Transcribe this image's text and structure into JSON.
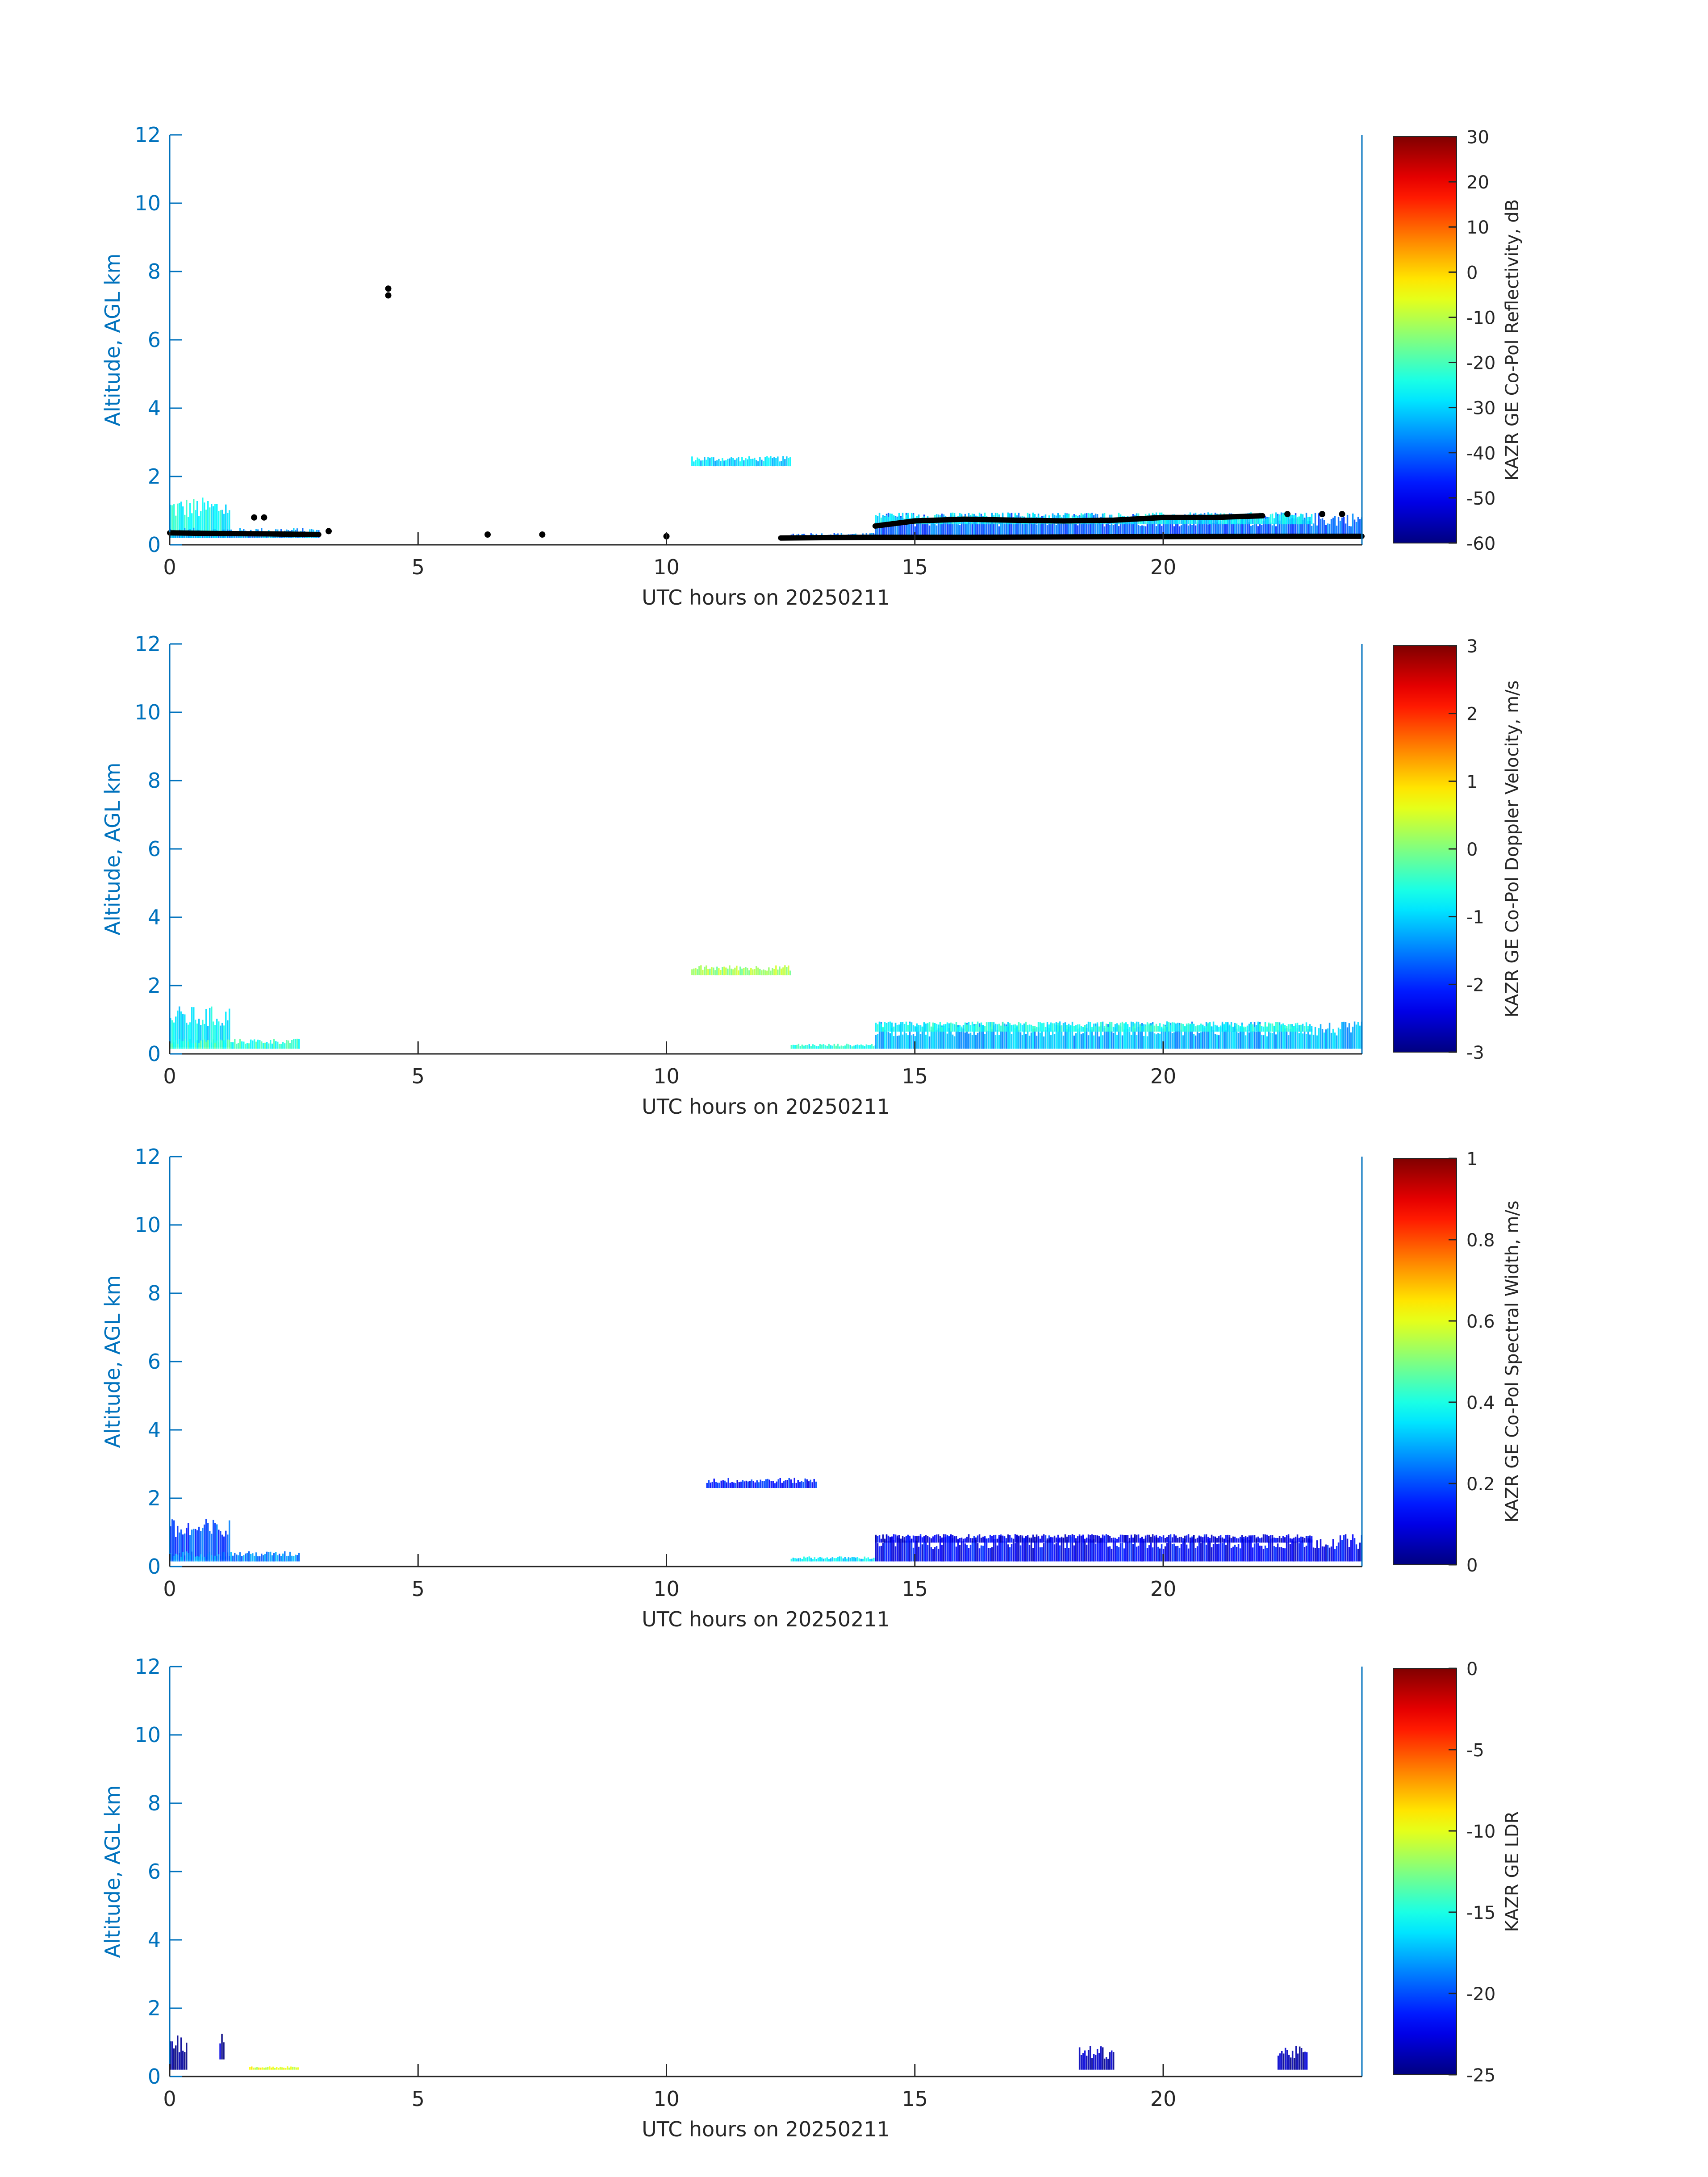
{
  "chart_data": [
    {
      "type": "heatmap",
      "xlabel": "UTC hours on 20250211",
      "ylabel": "Altitude, AGL km",
      "xlim": [
        0,
        24
      ],
      "ylim": [
        0,
        12
      ],
      "xticks": [
        "0",
        "5",
        "10",
        "15",
        "20"
      ],
      "yticks": [
        "0",
        "2",
        "4",
        "6",
        "8",
        "10",
        "12"
      ],
      "colorbar": {
        "label": "KAZR GE Co-Pol Reflectivity, dB",
        "range": [
          -60,
          30
        ],
        "ticks": [
          "30",
          "20",
          "10",
          "0",
          "-10",
          "-20",
          "-30",
          "-40",
          "-50",
          "-60"
        ],
        "colormap": "jet"
      },
      "features": [
        {
          "x0": 0.0,
          "x1": 1.2,
          "y0": 0.2,
          "y1": 1.4,
          "value": -25
        },
        {
          "x0": 0.0,
          "x1": 3.0,
          "y0": 0.2,
          "y1": 0.5,
          "value": -35
        },
        {
          "x0": 10.5,
          "x1": 12.5,
          "y0": 2.3,
          "y1": 2.6,
          "value": -30
        },
        {
          "x0": 12.5,
          "x1": 14.2,
          "y0": 0.2,
          "y1": 0.35,
          "value": -38
        },
        {
          "x0": 14.2,
          "x1": 24.0,
          "y0": 0.2,
          "y1": 0.95,
          "value": -40
        },
        {
          "x0": 14.2,
          "x1": 23.0,
          "y0": 0.6,
          "y1": 0.95,
          "value": -28
        }
      ],
      "markers": [
        {
          "x": 4.4,
          "y": 7.5
        },
        {
          "x": 4.4,
          "y": 7.3
        },
        {
          "x": 1.7,
          "y": 0.8
        },
        {
          "x": 1.9,
          "y": 0.8
        },
        {
          "x": 3.2,
          "y": 0.4
        },
        {
          "x": 6.4,
          "y": 0.3
        },
        {
          "x": 7.5,
          "y": 0.3
        },
        {
          "x": 10.0,
          "y": 0.25
        },
        {
          "x": 22.5,
          "y": 0.9
        },
        {
          "x": 23.2,
          "y": 0.9
        },
        {
          "x": 23.6,
          "y": 0.9
        }
      ],
      "black_lines": [
        {
          "x": [
            0.0,
            1.0,
            2.0,
            3.0
          ],
          "y": [
            0.35,
            0.33,
            0.32,
            0.3
          ]
        },
        {
          "x": [
            12.3,
            14.0,
            16.0,
            18.0,
            20.0,
            22.0,
            24.0
          ],
          "y": [
            0.2,
            0.22,
            0.22,
            0.23,
            0.24,
            0.25,
            0.25
          ]
        },
        {
          "x": [
            14.2,
            15.0,
            16.0,
            17.0,
            18.0,
            19.0,
            20.0,
            21.0,
            22.0
          ],
          "y": [
            0.55,
            0.7,
            0.75,
            0.72,
            0.7,
            0.72,
            0.8,
            0.8,
            0.85
          ]
        }
      ]
    },
    {
      "type": "heatmap",
      "xlabel": "UTC hours on 20250211",
      "ylabel": "Altitude, AGL km",
      "xlim": [
        0,
        24
      ],
      "ylim": [
        0,
        12
      ],
      "xticks": [
        "0",
        "5",
        "10",
        "15",
        "20"
      ],
      "yticks": [
        "0",
        "2",
        "4",
        "6",
        "8",
        "10",
        "12"
      ],
      "colorbar": {
        "label": "KAZR GE Co-Pol Doppler Velocity, m/s",
        "range": [
          -3,
          3
        ],
        "ticks": [
          "3",
          "2",
          "1",
          "0",
          "-1",
          "-2",
          "-3"
        ],
        "colormap": "jet"
      },
      "features": [
        {
          "x0": 0.0,
          "x1": 1.2,
          "y0": 0.2,
          "y1": 1.4,
          "value": -0.8
        },
        {
          "x0": 0.0,
          "x1": 2.6,
          "y0": 0.15,
          "y1": 0.45,
          "value": -0.5
        },
        {
          "x0": 10.5,
          "x1": 12.5,
          "y0": 2.3,
          "y1": 2.6,
          "value": 0.2
        },
        {
          "x0": 12.5,
          "x1": 14.2,
          "y0": 0.15,
          "y1": 0.3,
          "value": -0.6
        },
        {
          "x0": 14.2,
          "x1": 24.0,
          "y0": 0.15,
          "y1": 0.95,
          "value": -1.2
        },
        {
          "x0": 14.2,
          "x1": 23.0,
          "y0": 0.65,
          "y1": 0.95,
          "value": -0.7
        }
      ]
    },
    {
      "type": "heatmap",
      "xlabel": "UTC hours on 20250211",
      "ylabel": "Altitude, AGL km",
      "xlim": [
        0,
        24
      ],
      "ylim": [
        0,
        12
      ],
      "xticks": [
        "0",
        "5",
        "10",
        "15",
        "20"
      ],
      "yticks": [
        "0",
        "2",
        "4",
        "6",
        "8",
        "10",
        "12"
      ],
      "colorbar": {
        "label": "KAZR GE Co-Pol Spectral Width, m/s",
        "range": [
          0,
          1
        ],
        "ticks": [
          "1",
          "0.8",
          "0.6",
          "0.4",
          "0.2",
          "0"
        ],
        "colormap": "jet"
      },
      "features": [
        {
          "x0": 0.0,
          "x1": 1.2,
          "y0": 0.2,
          "y1": 1.4,
          "value": 0.2
        },
        {
          "x0": 0.0,
          "x1": 2.6,
          "y0": 0.15,
          "y1": 0.45,
          "value": 0.25
        },
        {
          "x0": 10.8,
          "x1": 13.0,
          "y0": 2.3,
          "y1": 2.6,
          "value": 0.15
        },
        {
          "x0": 12.5,
          "x1": 14.2,
          "y0": 0.15,
          "y1": 0.3,
          "value": 0.35
        },
        {
          "x0": 14.2,
          "x1": 24.0,
          "y0": 0.15,
          "y1": 0.95,
          "value": 0.12
        },
        {
          "x0": 14.2,
          "x1": 23.0,
          "y0": 0.7,
          "y1": 0.95,
          "value": 0.1
        }
      ]
    },
    {
      "type": "heatmap",
      "xlabel": "UTC hours on 20250211",
      "ylabel": "Altitude, AGL km",
      "xlim": [
        0,
        24
      ],
      "ylim": [
        0,
        12
      ],
      "xticks": [
        "0",
        "5",
        "10",
        "15",
        "20"
      ],
      "yticks": [
        "0",
        "2",
        "4",
        "6",
        "8",
        "10",
        "12"
      ],
      "colorbar": {
        "label": "KAZR GE LDR",
        "range": [
          -25,
          0
        ],
        "ticks": [
          "0",
          "-5",
          "-10",
          "-15",
          "-20",
          "-25"
        ],
        "colormap": "jet"
      },
      "features": [
        {
          "x0": 0.0,
          "x1": 0.35,
          "y0": 0.2,
          "y1": 1.3,
          "value": -25
        },
        {
          "x0": 1.0,
          "x1": 1.1,
          "y0": 0.5,
          "y1": 1.3,
          "value": -24
        },
        {
          "x0": 1.6,
          "x1": 2.6,
          "y0": 0.2,
          "y1": 0.3,
          "value": -10
        },
        {
          "x0": 18.3,
          "x1": 19.0,
          "y0": 0.2,
          "y1": 0.9,
          "value": -24
        },
        {
          "x0": 22.3,
          "x1": 22.9,
          "y0": 0.2,
          "y1": 0.9,
          "value": -24
        }
      ]
    }
  ]
}
